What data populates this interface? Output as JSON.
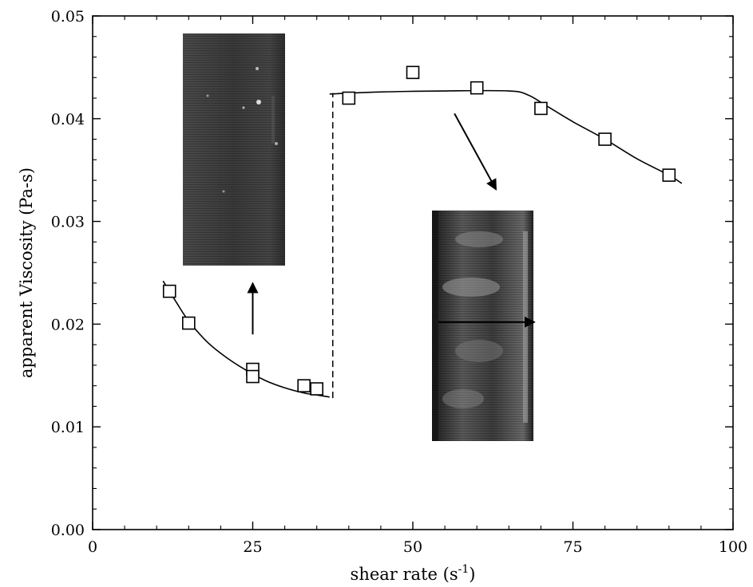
{
  "chart_data": {
    "type": "scatter",
    "xlabel": "shear rate",
    "xunit_base": "s",
    "xunit_exp": "-1",
    "ylabel": "apparent Viscosity (Pa-s)",
    "xlim": [
      0,
      100
    ],
    "ylim": [
      0,
      0.05
    ],
    "x_ticks": [
      0,
      25,
      50,
      75,
      100
    ],
    "x_tick_labels": [
      "0",
      "25",
      "50",
      "75",
      "100"
    ],
    "y_ticks": [
      0,
      0.01,
      0.02,
      0.03,
      0.04,
      0.05
    ],
    "y_tick_labels": [
      "0.00",
      "0.01",
      "0.02",
      "0.03",
      "0.04",
      "0.05"
    ],
    "grid": false,
    "series": [
      {
        "marker": "open-square",
        "points": [
          {
            "x": 12,
            "y": 0.0232
          },
          {
            "x": 15,
            "y": 0.0201
          },
          {
            "x": 25,
            "y": 0.0156
          },
          {
            "x": 25,
            "y": 0.0149
          },
          {
            "x": 33,
            "y": 0.014
          },
          {
            "x": 35,
            "y": 0.0137
          },
          {
            "x": 40,
            "y": 0.042
          },
          {
            "x": 50,
            "y": 0.0445
          },
          {
            "x": 60,
            "y": 0.043
          },
          {
            "x": 70,
            "y": 0.041
          },
          {
            "x": 80,
            "y": 0.038
          },
          {
            "x": 90,
            "y": 0.0345
          }
        ]
      }
    ],
    "fit_curves": [
      {
        "style": "solid",
        "points": [
          [
            11,
            0.0242
          ],
          [
            13,
            0.0222
          ],
          [
            15,
            0.0203
          ],
          [
            18,
            0.0182
          ],
          [
            21,
            0.0167
          ],
          [
            24,
            0.0155
          ],
          [
            27,
            0.0145
          ],
          [
            30,
            0.0138
          ],
          [
            33,
            0.0133
          ],
          [
            35,
            0.0131
          ],
          [
            37,
            0.0129
          ]
        ]
      },
      {
        "style": "solid",
        "points": [
          [
            37,
            0.0424
          ],
          [
            45,
            0.0426
          ],
          [
            55,
            0.0427
          ],
          [
            65,
            0.0427
          ],
          [
            68,
            0.0423
          ],
          [
            71,
            0.0412
          ],
          [
            75,
            0.0397
          ],
          [
            80,
            0.038
          ],
          [
            85,
            0.0361
          ],
          [
            90,
            0.0345
          ],
          [
            92,
            0.0337
          ]
        ]
      },
      {
        "style": "dashed",
        "points": [
          [
            37.5,
            0.0128
          ],
          [
            37.5,
            0.0425
          ]
        ]
      }
    ],
    "annotations": [
      {
        "type": "arrow",
        "from": [
          25,
          0.019
        ],
        "to": [
          25,
          0.024
        ]
      },
      {
        "type": "arrow",
        "from": [
          56.5,
          0.0405
        ],
        "to": [
          63,
          0.0331
        ]
      },
      {
        "type": "arrow",
        "from": [
          54,
          0.0202
        ],
        "to": [
          69,
          0.0202
        ]
      },
      {
        "type": "inset-image",
        "description": "micrograph-low-shear"
      },
      {
        "type": "inset-image",
        "description": "micrograph-high-shear"
      }
    ]
  }
}
